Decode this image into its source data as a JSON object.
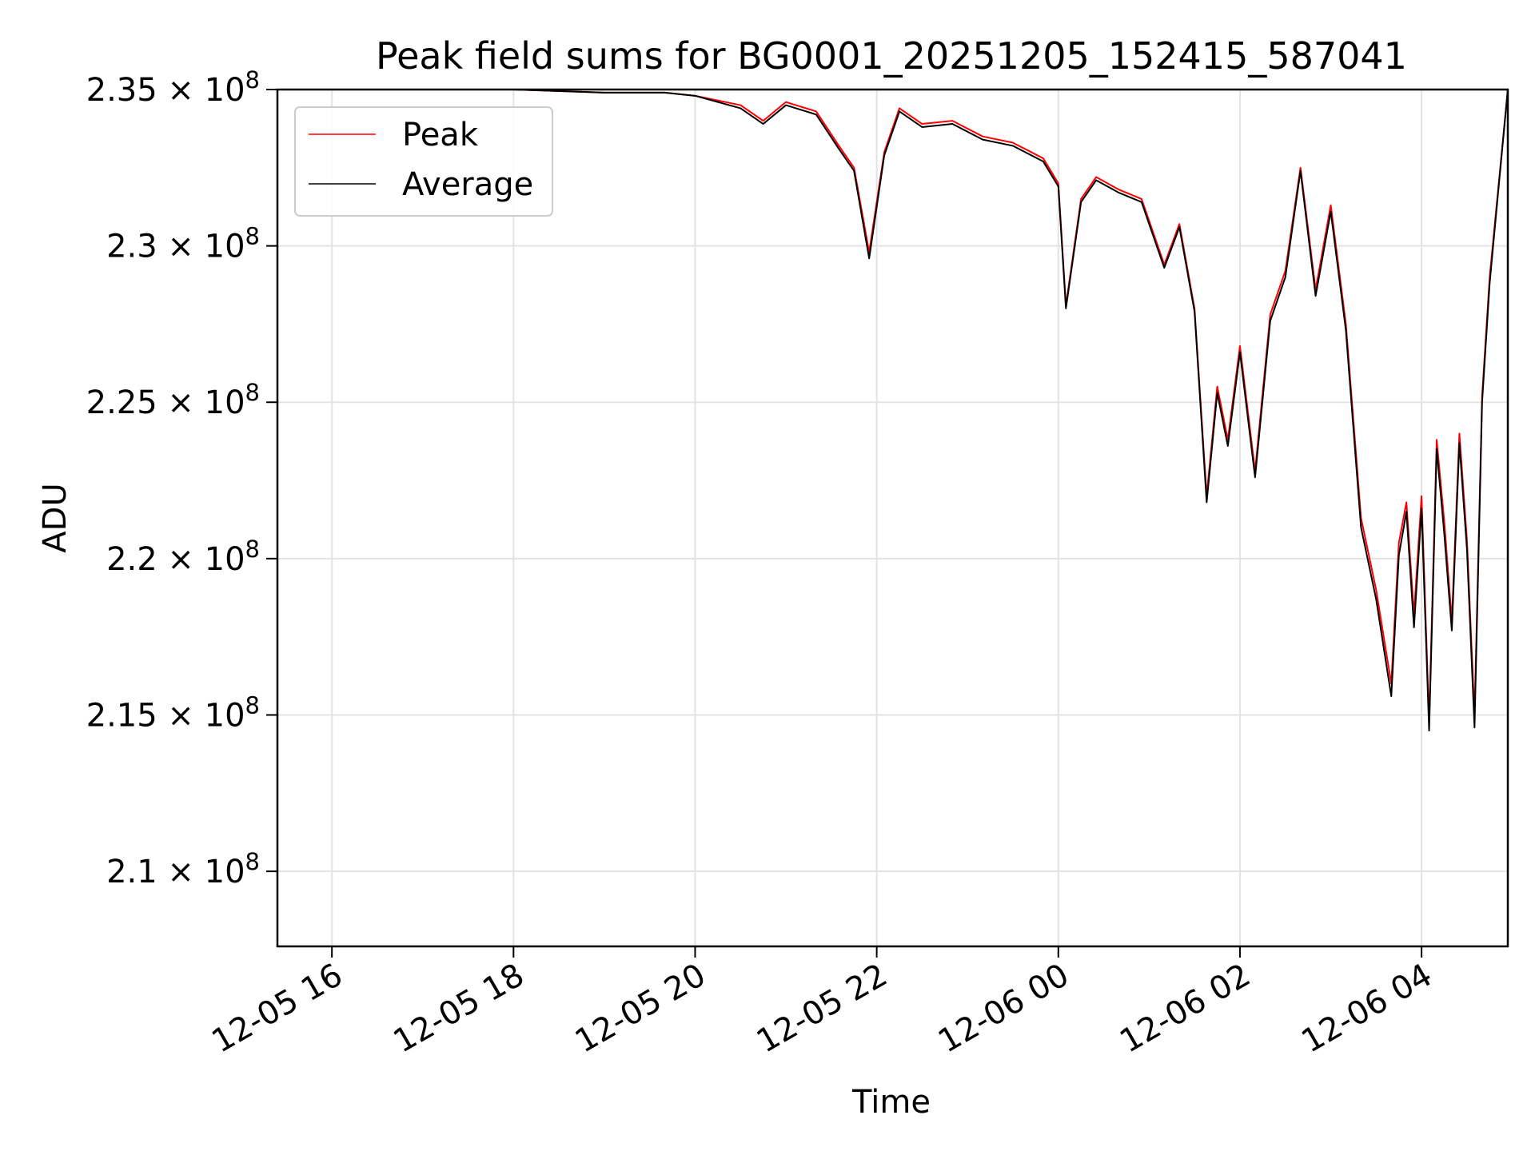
{
  "chart_data": {
    "type": "line",
    "title": "Peak field sums for BG0001_20251205_152415_587041",
    "xlabel": "Time",
    "ylabel": "ADU",
    "x_range": [
      "2025-12-05 15:24",
      "2025-12-06 04:57"
    ],
    "ylim": [
      207.6,
      235.0
    ],
    "y_unit_multiplier": "× 10^6",
    "x_ticks": [
      {
        "value": "2025-12-05 16:00",
        "label": "12-05 16"
      },
      {
        "value": "2025-12-05 18:00",
        "label": "12-05 18"
      },
      {
        "value": "2025-12-05 20:00",
        "label": "12-05 20"
      },
      {
        "value": "2025-12-05 22:00",
        "label": "12-05 22"
      },
      {
        "value": "2025-12-06 00:00",
        "label": "12-06 00"
      },
      {
        "value": "2025-12-06 02:00",
        "label": "12-06 02"
      },
      {
        "value": "2025-12-06 04:00",
        "label": "12-06 04"
      }
    ],
    "y_ticks": [
      {
        "value": 235.0,
        "mantissa": "2.35",
        "exp": "8"
      },
      {
        "value": 230.0,
        "mantissa": "2.3",
        "exp": "8"
      },
      {
        "value": 225.0,
        "mantissa": "2.25",
        "exp": "8"
      },
      {
        "value": 220.0,
        "mantissa": "2.2",
        "exp": "8"
      },
      {
        "value": 215.0,
        "mantissa": "2.15",
        "exp": "8"
      },
      {
        "value": 210.0,
        "mantissa": "2.1",
        "exp": "8"
      }
    ],
    "times_label": "1.0 × 10 ^ 8 notation uses mantissa × 10^exp",
    "grid": true,
    "legend_position": "upper-left",
    "series": [
      {
        "name": "Peak",
        "color": "#ff0000",
        "x": [
          "2025-12-05 15:24",
          "2025-12-05 16:00",
          "2025-12-05 17:00",
          "2025-12-05 18:00",
          "2025-12-05 19:00",
          "2025-12-05 19:40",
          "2025-12-05 20:00",
          "2025-12-05 20:30",
          "2025-12-05 20:45",
          "2025-12-05 21:00",
          "2025-12-05 21:20",
          "2025-12-05 21:35",
          "2025-12-05 21:45",
          "2025-12-05 21:55",
          "2025-12-05 22:05",
          "2025-12-05 22:15",
          "2025-12-05 22:30",
          "2025-12-05 22:50",
          "2025-12-05 23:10",
          "2025-12-05 23:30",
          "2025-12-05 23:50",
          "2025-12-06 00:00",
          "2025-12-06 00:05",
          "2025-12-06 00:15",
          "2025-12-06 00:25",
          "2025-12-06 00:40",
          "2025-12-06 00:55",
          "2025-12-06 01:10",
          "2025-12-06 01:20",
          "2025-12-06 01:30",
          "2025-12-06 01:38",
          "2025-12-06 01:45",
          "2025-12-06 01:52",
          "2025-12-06 02:00",
          "2025-12-06 02:10",
          "2025-12-06 02:20",
          "2025-12-06 02:30",
          "2025-12-06 02:40",
          "2025-12-06 02:50",
          "2025-12-06 03:00",
          "2025-12-06 03:10",
          "2025-12-06 03:20",
          "2025-12-06 03:30",
          "2025-12-06 03:40",
          "2025-12-06 03:45",
          "2025-12-06 03:50",
          "2025-12-06 03:55",
          "2025-12-06 04:00",
          "2025-12-06 04:05",
          "2025-12-06 04:10",
          "2025-12-06 04:15",
          "2025-12-06 04:20",
          "2025-12-06 04:25",
          "2025-12-06 04:30",
          "2025-12-06 04:35",
          "2025-12-06 04:40",
          "2025-12-06 04:45",
          "2025-12-06 04:50",
          "2025-12-06 04:57"
        ],
        "y": [
          235.0,
          235.0,
          235.0,
          235.0,
          234.9,
          234.9,
          234.8,
          234.5,
          234.0,
          234.6,
          234.3,
          233.2,
          232.5,
          229.8,
          233.0,
          234.4,
          233.9,
          234.0,
          233.5,
          233.3,
          232.8,
          232.0,
          228.1,
          231.5,
          232.2,
          231.8,
          231.5,
          229.4,
          230.7,
          228.0,
          222.0,
          225.5,
          223.8,
          226.8,
          222.8,
          227.8,
          229.2,
          232.5,
          228.6,
          231.3,
          227.5,
          221.3,
          219.0,
          216.0,
          220.5,
          221.8,
          218.2,
          222.0,
          214.8,
          223.8,
          221.2,
          218.0,
          224.0,
          220.6,
          215.0,
          225.2,
          229.0,
          231.5,
          235.0
        ]
      },
      {
        "name": "Average",
        "color": "#000000",
        "x": [
          "2025-12-05 15:24",
          "2025-12-05 16:00",
          "2025-12-05 17:00",
          "2025-12-05 18:00",
          "2025-12-05 19:00",
          "2025-12-05 19:40",
          "2025-12-05 20:00",
          "2025-12-05 20:30",
          "2025-12-05 20:45",
          "2025-12-05 21:00",
          "2025-12-05 21:20",
          "2025-12-05 21:35",
          "2025-12-05 21:45",
          "2025-12-05 21:55",
          "2025-12-05 22:05",
          "2025-12-05 22:15",
          "2025-12-05 22:30",
          "2025-12-05 22:50",
          "2025-12-05 23:10",
          "2025-12-05 23:30",
          "2025-12-05 23:50",
          "2025-12-06 00:00",
          "2025-12-06 00:05",
          "2025-12-06 00:15",
          "2025-12-06 00:25",
          "2025-12-06 00:40",
          "2025-12-06 00:55",
          "2025-12-06 01:10",
          "2025-12-06 01:20",
          "2025-12-06 01:30",
          "2025-12-06 01:38",
          "2025-12-06 01:45",
          "2025-12-06 01:52",
          "2025-12-06 02:00",
          "2025-12-06 02:10",
          "2025-12-06 02:20",
          "2025-12-06 02:30",
          "2025-12-06 02:40",
          "2025-12-06 02:50",
          "2025-12-06 03:00",
          "2025-12-06 03:10",
          "2025-12-06 03:20",
          "2025-12-06 03:30",
          "2025-12-06 03:40",
          "2025-12-06 03:45",
          "2025-12-06 03:50",
          "2025-12-06 03:55",
          "2025-12-06 04:00",
          "2025-12-06 04:05",
          "2025-12-06 04:10",
          "2025-12-06 04:15",
          "2025-12-06 04:20",
          "2025-12-06 04:25",
          "2025-12-06 04:30",
          "2025-12-06 04:35",
          "2025-12-06 04:40",
          "2025-12-06 04:45",
          "2025-12-06 04:50",
          "2025-12-06 04:57"
        ],
        "y": [
          235.0,
          235.0,
          235.0,
          235.0,
          234.9,
          234.9,
          234.8,
          234.4,
          233.9,
          234.5,
          234.2,
          233.1,
          232.4,
          229.6,
          232.9,
          234.3,
          233.8,
          233.9,
          233.4,
          233.2,
          232.7,
          231.9,
          228.0,
          231.4,
          232.1,
          231.7,
          231.4,
          229.3,
          230.6,
          227.9,
          221.8,
          225.3,
          223.6,
          226.6,
          222.6,
          227.6,
          229.0,
          232.4,
          228.4,
          231.1,
          227.3,
          221.0,
          218.7,
          215.6,
          220.1,
          221.5,
          217.8,
          221.6,
          214.5,
          223.5,
          220.8,
          217.7,
          223.7,
          220.3,
          214.6,
          225.0,
          228.8,
          231.4,
          235.0
        ]
      }
    ]
  }
}
